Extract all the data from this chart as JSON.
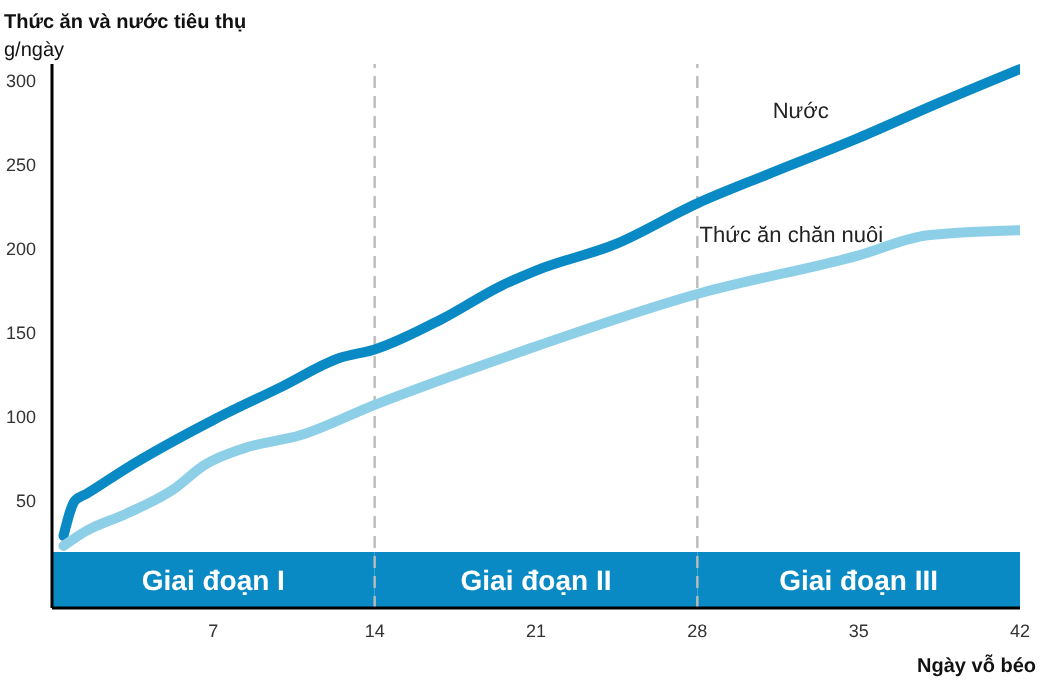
{
  "chart_data": {
    "type": "line",
    "title": "Thức ăn và nước tiêu thụ",
    "ylabel": "g/ngày",
    "xlabel": "Ngày vỗ béo",
    "xlim": [
      0,
      42
    ],
    "xticks": [
      7,
      14,
      21,
      28,
      35,
      42
    ],
    "ylim": [
      -14,
      310
    ],
    "yticks": [
      50,
      100,
      150,
      200,
      250,
      300
    ],
    "grid": false,
    "legend": false,
    "marker": "none",
    "line_style": "solid",
    "series": [
      {
        "name": "Nước",
        "color": "#0a8ac4",
        "x": [
          0.5,
          1,
          1.5,
          3.2,
          7,
          10,
          12.5,
          14,
          16.9,
          19.5,
          21,
          24.5,
          28,
          31,
          35,
          38.5,
          42
        ],
        "values": [
          29,
          50,
          54,
          69,
          98,
          118,
          135,
          140,
          158,
          178,
          187,
          203,
          227,
          244,
          266,
          287,
          307
        ]
      },
      {
        "name": "Thức ăn chăn nuôi",
        "color": "#8ecfe8",
        "x": [
          0.5,
          1.5,
          3.2,
          5.3,
          6.6,
          8.3,
          10.8,
          14,
          20.2,
          28,
          35,
          38,
          42
        ],
        "values": [
          23,
          32,
          42,
          57,
          71,
          81,
          89,
          107,
          138,
          173,
          196,
          208,
          211
        ]
      }
    ],
    "ref_lines": [
      {
        "axis": "x",
        "value": 14,
        "color": "#bbbbbb",
        "line_style": "dashed"
      },
      {
        "axis": "x",
        "value": 28,
        "color": "#bbbbbb",
        "line_style": "dashed"
      }
    ],
    "bands": [
      {
        "axis": "x",
        "from": 0,
        "to": 14,
        "label": "Giai đoạn I",
        "color": "#0a8ac4"
      },
      {
        "axis": "x",
        "from": 14,
        "to": 28,
        "label": "Giai đoạn II",
        "color": "#0a8ac4"
      },
      {
        "axis": "x",
        "from": 28,
        "to": 42,
        "label": "Giai đoạn III",
        "color": "#0a8ac4"
      }
    ]
  }
}
